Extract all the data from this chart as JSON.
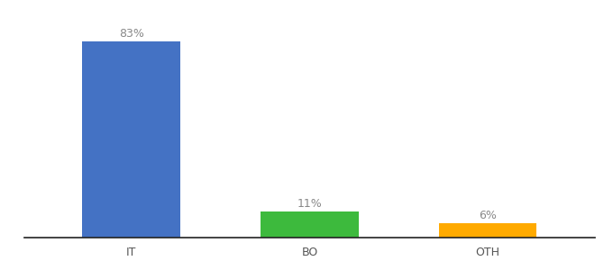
{
  "categories": [
    "IT",
    "BO",
    "OTH"
  ],
  "values": [
    83,
    11,
    6
  ],
  "bar_colors": [
    "#4472c4",
    "#3dba3d",
    "#ffaa00"
  ],
  "labels": [
    "83%",
    "11%",
    "6%"
  ],
  "ylim": [
    0,
    95
  ],
  "background_color": "#ffffff",
  "label_fontsize": 9,
  "tick_fontsize": 9,
  "bar_width": 0.55,
  "label_color": "#888888",
  "tick_color": "#555555",
  "spine_color": "#222222"
}
